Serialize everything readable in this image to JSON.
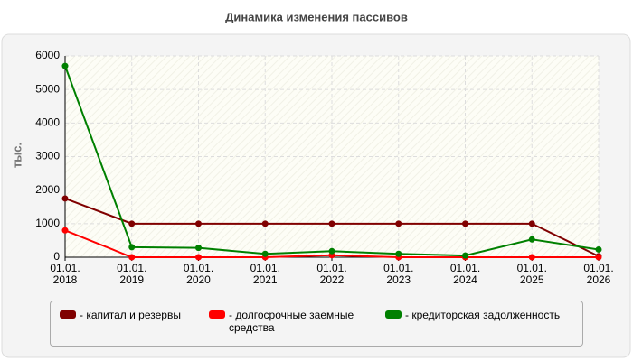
{
  "chart_data": {
    "type": "line",
    "title": "Динамика изменения пассивов",
    "y_label": "тыс.",
    "categories": [
      "01.01.\n2018",
      "01.01.\n2019",
      "01.01.\n2020",
      "01.01.\n2021",
      "01.01.\n2022",
      "01.01.\n2023",
      "01.01.\n2024",
      "01.01.\n2025",
      "01.01.\n2026"
    ],
    "series": [
      {
        "name": "капитал и резервы",
        "color": "#800000",
        "values": [
          1750,
          1000,
          1000,
          1000,
          1000,
          1000,
          1000,
          1000,
          30
        ]
      },
      {
        "name": "долгосрочные заемные средства",
        "color": "#ff0000",
        "values": [
          800,
          0,
          0,
          0,
          60,
          0,
          0,
          0,
          0
        ]
      },
      {
        "name": "кредиторская задолженность",
        "color": "#008000",
        "values": [
          5700,
          300,
          280,
          100,
          180,
          100,
          50,
          530,
          230
        ]
      }
    ],
    "ylim": [
      0,
      6000
    ],
    "yticks": [
      0,
      1000,
      2000,
      3000,
      4000,
      5000,
      6000
    ],
    "grid": true
  }
}
